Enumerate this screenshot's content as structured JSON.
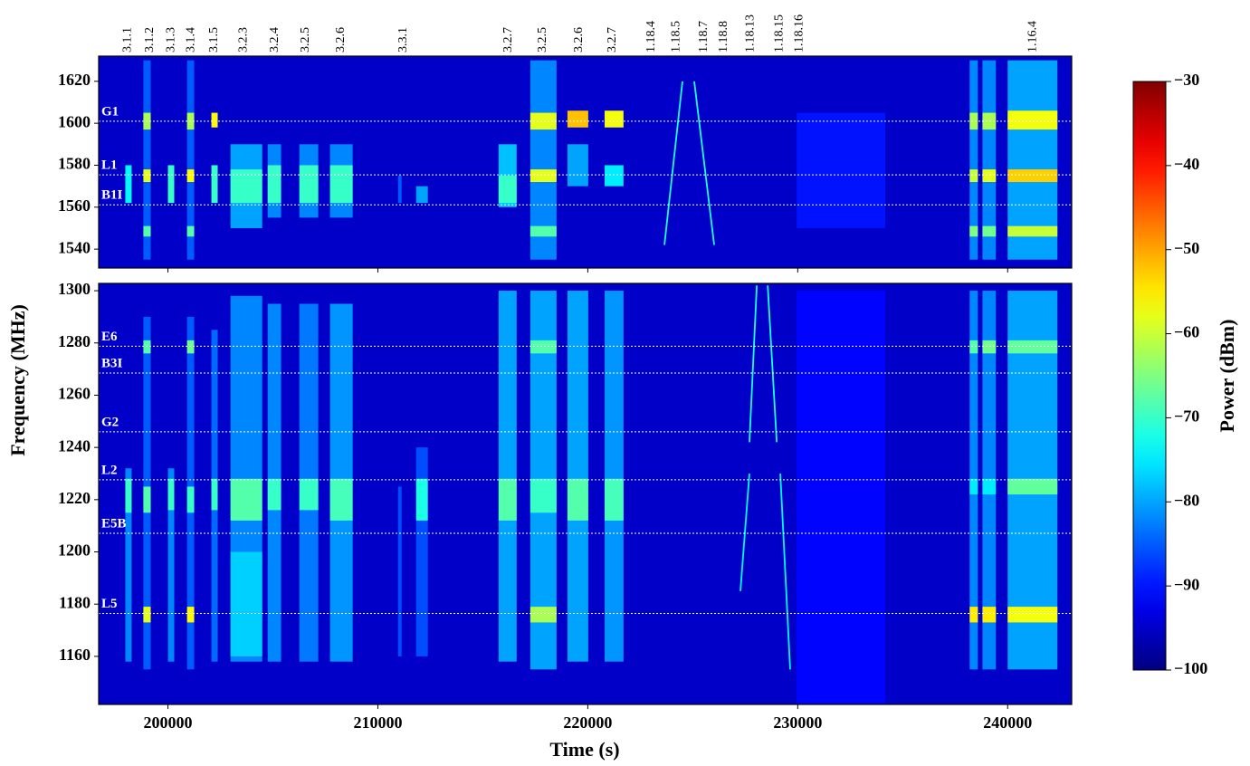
{
  "chart_data": {
    "type": "spectrogram",
    "xlabel": "Time (s)",
    "ylabel": "Frequency (MHz)",
    "xlim": [
      196700,
      243050
    ],
    "xticks": [
      200000,
      210000,
      220000,
      230000,
      240000
    ],
    "colormap": "jet",
    "background_power": -95,
    "colorbar": {
      "label": "Power (dBm)",
      "lim": [
        -100,
        -30
      ],
      "ticks": [
        {
          "value": -30,
          "label": "−30"
        },
        {
          "value": -40,
          "label": "−40"
        },
        {
          "value": -50,
          "label": "−50"
        },
        {
          "value": -60,
          "label": "−60"
        },
        {
          "value": -70,
          "label": "−70"
        },
        {
          "value": -80,
          "label": "−80"
        },
        {
          "value": -90,
          "label": "−90"
        },
        {
          "value": -100,
          "label": "−100"
        }
      ]
    },
    "panels": [
      {
        "ylim": [
          1531,
          1632
        ],
        "yticks": [
          1540,
          1560,
          1580,
          1600,
          1620
        ]
      },
      {
        "ylim": [
          1141.6,
          1302.8
        ],
        "yticks": [
          1160,
          1180,
          1200,
          1220,
          1240,
          1260,
          1280,
          1300
        ]
      }
    ],
    "reference_lines": [
      {
        "label": "G1",
        "freq": 1601
      },
      {
        "label": "L1",
        "freq": 1575.42
      },
      {
        "label": "B1I",
        "freq": 1561.1
      },
      {
        "label": "E6",
        "freq": 1278.75
      },
      {
        "label": "B3I",
        "freq": 1268.5
      },
      {
        "label": "G2",
        "freq": 1246
      },
      {
        "label": "L2",
        "freq": 1227.6
      },
      {
        "label": "E5B",
        "freq": 1207.14
      },
      {
        "label": "L5",
        "freq": 1176.45
      }
    ],
    "test_labels": [
      {
        "label": "3.1.1",
        "t": 198100
      },
      {
        "label": "3.1.2",
        "t": 199140
      },
      {
        "label": "3.1.3",
        "t": 200170
      },
      {
        "label": "3.1.4",
        "t": 201120
      },
      {
        "label": "3.1.5",
        "t": 202200
      },
      {
        "label": "3.2.3",
        "t": 203620
      },
      {
        "label": "3.2.4",
        "t": 205090
      },
      {
        "label": "3.2.5",
        "t": 206560
      },
      {
        "label": "3.2.6",
        "t": 208240
      },
      {
        "label": "3.3.1",
        "t": 211220
      },
      {
        "label": "3.2.7",
        "t": 216220
      },
      {
        "label": "3.2.5",
        "t": 217860
      },
      {
        "label": "3.2.6",
        "t": 219590
      },
      {
        "label": "3.2.7",
        "t": 221190
      },
      {
        "label": "1.18.4",
        "t": 223040
      },
      {
        "label": "1.18.5",
        "t": 224210
      },
      {
        "label": "1.18.7",
        "t": 225540
      },
      {
        "label": "1.18.8",
        "t": 226490
      },
      {
        "label": "1.18.13",
        "t": 227750
      },
      {
        "label": "1.18.15",
        "t": 229130
      },
      {
        "label": "1.18.16",
        "t": 230080
      },
      {
        "label": "1.16.4",
        "t": 241210
      }
    ],
    "bursts": [
      {
        "t": [
          197970,
          198270
        ],
        "bands": [
          [
            1562,
            1580,
            -74
          ],
          [
            1158,
            1232,
            -82
          ],
          [
            1215,
            1228,
            -70
          ]
        ]
      },
      {
        "t": [
          198830,
          199180
        ],
        "bands": [
          [
            1535,
            1630,
            -85
          ],
          [
            1597,
            1605,
            -62
          ],
          [
            1572,
            1578,
            -58
          ],
          [
            1546,
            1551,
            -68
          ],
          [
            1155,
            1290,
            -85
          ],
          [
            1276,
            1281,
            -68
          ],
          [
            1215,
            1225,
            -68
          ],
          [
            1173,
            1179,
            -58
          ]
        ]
      },
      {
        "t": [
          200000,
          200300
        ],
        "bands": [
          [
            1562,
            1580,
            -70
          ],
          [
            1158,
            1232,
            -82
          ],
          [
            1216,
            1228,
            -70
          ]
        ]
      },
      {
        "t": [
          200910,
          201250
        ],
        "bands": [
          [
            1535,
            1630,
            -85
          ],
          [
            1597,
            1605,
            -62
          ],
          [
            1572,
            1578,
            -56
          ],
          [
            1546,
            1551,
            -68
          ],
          [
            1155,
            1290,
            -85
          ],
          [
            1276,
            1281,
            -66
          ],
          [
            1215,
            1225,
            -70
          ],
          [
            1173,
            1179,
            -56
          ]
        ]
      },
      {
        "t": [
          202070,
          202370
        ],
        "bands": [
          [
            1598,
            1605,
            -56
          ],
          [
            1562,
            1580,
            -70
          ],
          [
            1158,
            1285,
            -84
          ],
          [
            1216,
            1228,
            -70
          ]
        ]
      },
      {
        "t": [
          202980,
          204490
        ],
        "bands": [
          [
            1550,
            1590,
            -80
          ],
          [
            1562,
            1578,
            -70
          ],
          [
            1158,
            1298,
            -82
          ],
          [
            1160,
            1200,
            -77
          ],
          [
            1212,
            1228,
            -68
          ]
        ]
      },
      {
        "t": [
          204750,
          205390
        ],
        "bands": [
          [
            1555,
            1590,
            -82
          ],
          [
            1562,
            1580,
            -70
          ],
          [
            1158,
            1295,
            -82
          ],
          [
            1216,
            1228,
            -70
          ]
        ]
      },
      {
        "t": [
          206260,
          207160
        ],
        "bands": [
          [
            1555,
            1590,
            -82
          ],
          [
            1562,
            1580,
            -70
          ],
          [
            1158,
            1295,
            -83
          ],
          [
            1216,
            1228,
            -70
          ]
        ]
      },
      {
        "t": [
          207720,
          208800
        ],
        "bands": [
          [
            1555,
            1590,
            -82
          ],
          [
            1562,
            1580,
            -70
          ],
          [
            1158,
            1295,
            -81
          ],
          [
            1212,
            1228,
            -69
          ]
        ]
      },
      {
        "t": [
          210960,
          211130
        ],
        "bands": [
          [
            1562,
            1575,
            -85
          ],
          [
            1160,
            1225,
            -86
          ]
        ]
      },
      {
        "t": [
          211820,
          212380
        ],
        "bands": [
          [
            1562,
            1570,
            -80
          ],
          [
            1160,
            1240,
            -86
          ],
          [
            1212,
            1228,
            -72
          ]
        ]
      },
      {
        "t": [
          215750,
          216610
        ],
        "bands": [
          [
            1560,
            1590,
            -78
          ],
          [
            1562,
            1575,
            -70
          ],
          [
            1158,
            1300,
            -80
          ],
          [
            1212,
            1228,
            -68
          ]
        ]
      },
      {
        "t": [
          217260,
          218510
        ],
        "bands": [
          [
            1535,
            1630,
            -82
          ],
          [
            1597,
            1605,
            -58
          ],
          [
            1572,
            1578,
            -58
          ],
          [
            1546,
            1551,
            -68
          ],
          [
            1155,
            1300,
            -80
          ],
          [
            1276,
            1281,
            -68
          ],
          [
            1215,
            1228,
            -70
          ],
          [
            1173,
            1179,
            -62
          ]
        ]
      },
      {
        "t": [
          219030,
          220020
        ],
        "bands": [
          [
            1570,
            1590,
            -80
          ],
          [
            1598,
            1606,
            -52
          ],
          [
            1158,
            1300,
            -80
          ],
          [
            1212,
            1228,
            -68
          ]
        ]
      },
      {
        "t": [
          220800,
          221700
        ],
        "bands": [
          [
            1570,
            1580,
            -75
          ],
          [
            1598,
            1606,
            -57
          ],
          [
            1158,
            1300,
            -81
          ],
          [
            1212,
            1228,
            -69
          ]
        ]
      },
      {
        "t": [
          229950,
          234170
        ],
        "bands": [
          [
            1550,
            1605,
            -90
          ],
          [
            1142,
            1300,
            -91
          ]
        ]
      },
      {
        "t": [
          238190,
          238580
        ],
        "bands": [
          [
            1535,
            1630,
            -82
          ],
          [
            1597,
            1605,
            -62
          ],
          [
            1572,
            1578,
            -60
          ],
          [
            1546,
            1551,
            -65
          ],
          [
            1155,
            1300,
            -82
          ],
          [
            1276,
            1281,
            -68
          ],
          [
            1222,
            1228,
            -75
          ],
          [
            1173,
            1179,
            -55
          ]
        ]
      },
      {
        "t": [
          238800,
          239440
        ],
        "bands": [
          [
            1535,
            1630,
            -82
          ],
          [
            1597,
            1605,
            -62
          ],
          [
            1572,
            1578,
            -58
          ],
          [
            1546,
            1551,
            -66
          ],
          [
            1155,
            1300,
            -82
          ],
          [
            1276,
            1281,
            -66
          ],
          [
            1222,
            1228,
            -75
          ],
          [
            1173,
            1179,
            -55
          ]
        ]
      },
      {
        "t": [
          240000,
          242370
        ],
        "bands": [
          [
            1535,
            1630,
            -80
          ],
          [
            1597,
            1606,
            -57
          ],
          [
            1572,
            1578,
            -53
          ],
          [
            1546,
            1551,
            -60
          ],
          [
            1155,
            1300,
            -80
          ],
          [
            1276,
            1281,
            -67
          ],
          [
            1222,
            1228,
            -67
          ],
          [
            1173,
            1179,
            -57
          ]
        ]
      }
    ],
    "sweeps": [
      {
        "t": [
          223650,
          224510
        ],
        "f": [
          1542,
          1620
        ],
        "p": -72
      },
      {
        "t": [
          225070,
          226020
        ],
        "f": [
          1620,
          1542
        ],
        "p": -72
      },
      {
        "t": [
          227700,
          228050
        ],
        "f": [
          1242,
          1302
        ],
        "p": -72
      },
      {
        "t": [
          228570,
          229000
        ],
        "f": [
          1302,
          1242
        ],
        "p": -72
      },
      {
        "t": [
          227270,
          227700
        ],
        "f": [
          1185,
          1230
        ],
        "p": -74
      },
      {
        "t": [
          229170,
          229640
        ],
        "f": [
          1230,
          1155
        ],
        "p": -74
      }
    ]
  }
}
